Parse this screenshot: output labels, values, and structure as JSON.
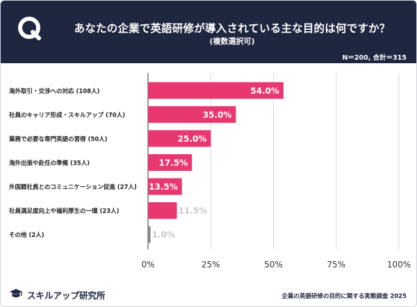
{
  "header": {
    "title": "あなたの企業で英語研修が導入されている主な目的は何ですか？",
    "subtitle": "(複数選択可)",
    "sample": "N＝200, 合計＝315",
    "accent": "#1f2740"
  },
  "chart_data": {
    "type": "bar",
    "orientation": "horizontal",
    "categories": [
      "海外取引・交渉への対応 (108人)",
      "社員のキャリア形成・スキルアップ (70人)",
      "業務で必要な専門英語の習得 (50人)",
      "海外出張や赴任の準備 (35人)",
      "外国籍社員とのコミュニケーション促進 (27人)",
      "社員満足度向上や福利厚生の一環 (23人)",
      "その他 (2人)"
    ],
    "values": [
      54.0,
      35.0,
      25.0,
      17.5,
      13.5,
      11.5,
      1.0
    ],
    "value_labels": [
      "54.0%",
      "35.0%",
      "25.0%",
      "17.5%",
      "13.5%",
      "11.5%",
      "1.0%"
    ],
    "xlim": [
      0,
      100
    ],
    "ticks": [
      "0%",
      "25%",
      "50%",
      "75%",
      "100%"
    ],
    "tick_values": [
      0,
      25,
      50,
      75,
      100
    ],
    "bar_color": "#e8386f",
    "other_color": "#888888",
    "grid": true
  },
  "footer": {
    "brand": "スキルアップ研究所",
    "note": "企業の英語研修の目的に関する実態調査 2025"
  }
}
